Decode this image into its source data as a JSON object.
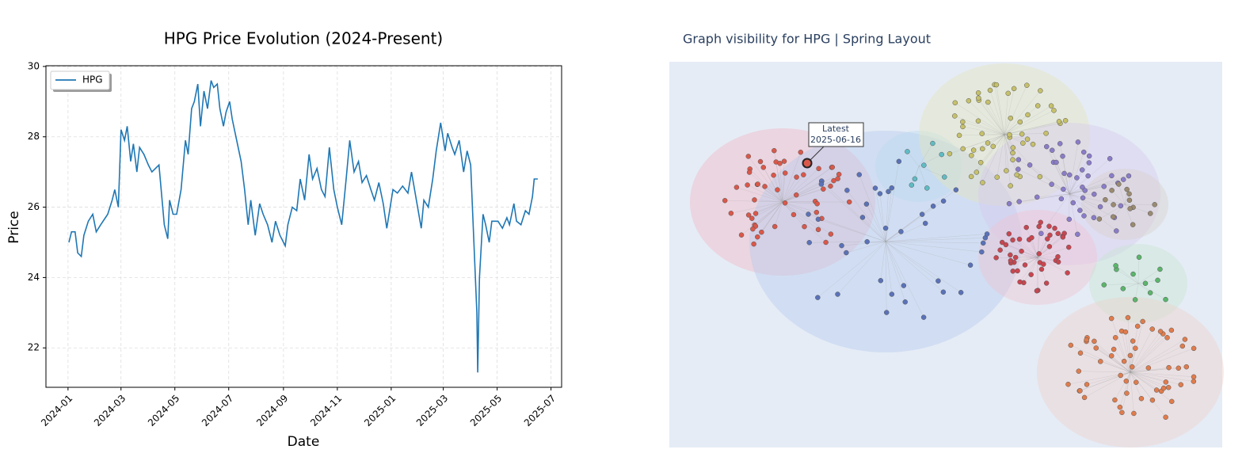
{
  "chart_data": {
    "type": "line",
    "title": "HPG Price Evolution (2024-Present)",
    "xlabel": "Date",
    "ylabel": "Price",
    "x": [
      "2024-01-02",
      "2024-01-05",
      "2024-01-09",
      "2024-01-12",
      "2024-01-16",
      "2024-01-19",
      "2024-01-24",
      "2024-01-29",
      "2024-02-02",
      "2024-02-07",
      "2024-02-15",
      "2024-02-20",
      "2024-02-23",
      "2024-02-27",
      "2024-03-01",
      "2024-03-05",
      "2024-03-08",
      "2024-03-12",
      "2024-03-15",
      "2024-03-19",
      "2024-03-22",
      "2024-03-27",
      "2024-04-01",
      "2024-04-05",
      "2024-04-13",
      "2024-04-19",
      "2024-04-23",
      "2024-04-25",
      "2024-04-29",
      "2024-05-03",
      "2024-05-08",
      "2024-05-13",
      "2024-05-16",
      "2024-05-20",
      "2024-05-23",
      "2024-05-27",
      "2024-05-30",
      "2024-06-03",
      "2024-06-07",
      "2024-06-11",
      "2024-06-14",
      "2024-06-18",
      "2024-06-21",
      "2024-06-25",
      "2024-06-28",
      "2024-07-02",
      "2024-07-05",
      "2024-07-10",
      "2024-07-15",
      "2024-07-19",
      "2024-07-23",
      "2024-07-26",
      "2024-07-31",
      "2024-08-05",
      "2024-08-09",
      "2024-08-14",
      "2024-08-19",
      "2024-08-23",
      "2024-08-28",
      "2024-09-03",
      "2024-09-06",
      "2024-09-11",
      "2024-09-16",
      "2024-09-20",
      "2024-09-25",
      "2024-09-30",
      "2024-10-04",
      "2024-10-09",
      "2024-10-14",
      "2024-10-18",
      "2024-10-23",
      "2024-10-28",
      "2024-11-01",
      "2024-11-06",
      "2024-11-11",
      "2024-11-15",
      "2024-11-20",
      "2024-11-25",
      "2024-11-29",
      "2024-12-04",
      "2024-12-09",
      "2024-12-13",
      "2024-12-18",
      "2024-12-23",
      "2024-12-27",
      "2025-01-03",
      "2025-01-08",
      "2025-01-14",
      "2025-01-20",
      "2025-01-24",
      "2025-02-04",
      "2025-02-07",
      "2025-02-12",
      "2025-02-17",
      "2025-02-21",
      "2025-02-26",
      "2025-03-03",
      "2025-03-06",
      "2025-03-11",
      "2025-03-14",
      "2025-03-19",
      "2025-03-24",
      "2025-03-28",
      "2025-04-01",
      "2025-04-03",
      "2025-04-08",
      "2025-04-09",
      "2025-04-11",
      "2025-04-15",
      "2025-04-18",
      "2025-04-22",
      "2025-04-25",
      "2025-05-02",
      "2025-05-07",
      "2025-05-12",
      "2025-05-15",
      "2025-05-20",
      "2025-05-23",
      "2025-05-28",
      "2025-06-02",
      "2025-06-06",
      "2025-06-10",
      "2025-06-12",
      "2025-06-16"
    ],
    "series": [
      {
        "name": "HPG",
        "color": "#1f77b4",
        "values": [
          25.0,
          25.3,
          25.3,
          24.7,
          24.6,
          25.2,
          25.6,
          25.8,
          25.3,
          25.5,
          25.8,
          26.2,
          26.5,
          26.0,
          28.2,
          27.9,
          28.3,
          27.3,
          27.8,
          27.0,
          27.7,
          27.5,
          27.2,
          27.0,
          27.2,
          25.5,
          25.1,
          26.2,
          25.8,
          25.8,
          26.5,
          27.9,
          27.5,
          28.8,
          29.0,
          29.5,
          28.3,
          29.3,
          28.8,
          29.6,
          29.4,
          29.5,
          28.8,
          28.3,
          28.7,
          29.0,
          28.5,
          27.9,
          27.3,
          26.5,
          25.5,
          26.2,
          25.2,
          26.1,
          25.8,
          25.5,
          25.0,
          25.6,
          25.2,
          24.9,
          25.5,
          26.0,
          25.9,
          26.8,
          26.2,
          27.5,
          26.8,
          27.1,
          26.5,
          26.3,
          27.7,
          26.5,
          26.0,
          25.5,
          26.8,
          27.9,
          27.0,
          27.3,
          26.7,
          26.9,
          26.5,
          26.2,
          26.7,
          26.1,
          25.4,
          26.5,
          26.4,
          26.6,
          26.4,
          27.0,
          25.4,
          26.2,
          26.0,
          26.8,
          27.6,
          28.4,
          27.6,
          28.1,
          27.7,
          27.5,
          27.9,
          27.0,
          27.6,
          27.2,
          26.0,
          23.0,
          21.3,
          24.0,
          25.8,
          25.5,
          25.0,
          25.6,
          25.6,
          25.4,
          25.7,
          25.5,
          26.1,
          25.6,
          25.5,
          25.9,
          25.8,
          26.3,
          26.8,
          26.8
        ]
      }
    ],
    "xlim": [
      "2023-12-07",
      "2025-07-13"
    ],
    "xticks": [
      "2024-01",
      "2024-03",
      "2024-05",
      "2024-07",
      "2024-09",
      "2024-11",
      "2025-01",
      "2025-03",
      "2025-05",
      "2025-07"
    ],
    "ylim": [
      20.88,
      30.02
    ],
    "yticks": [
      22,
      24,
      26,
      28,
      30
    ],
    "grid": true,
    "legend": "upper left"
  },
  "graph": {
    "title": "Graph visibility for HPG | Spring Layout",
    "annotation": {
      "label": "Latest",
      "date": "2025-06-16"
    }
  }
}
